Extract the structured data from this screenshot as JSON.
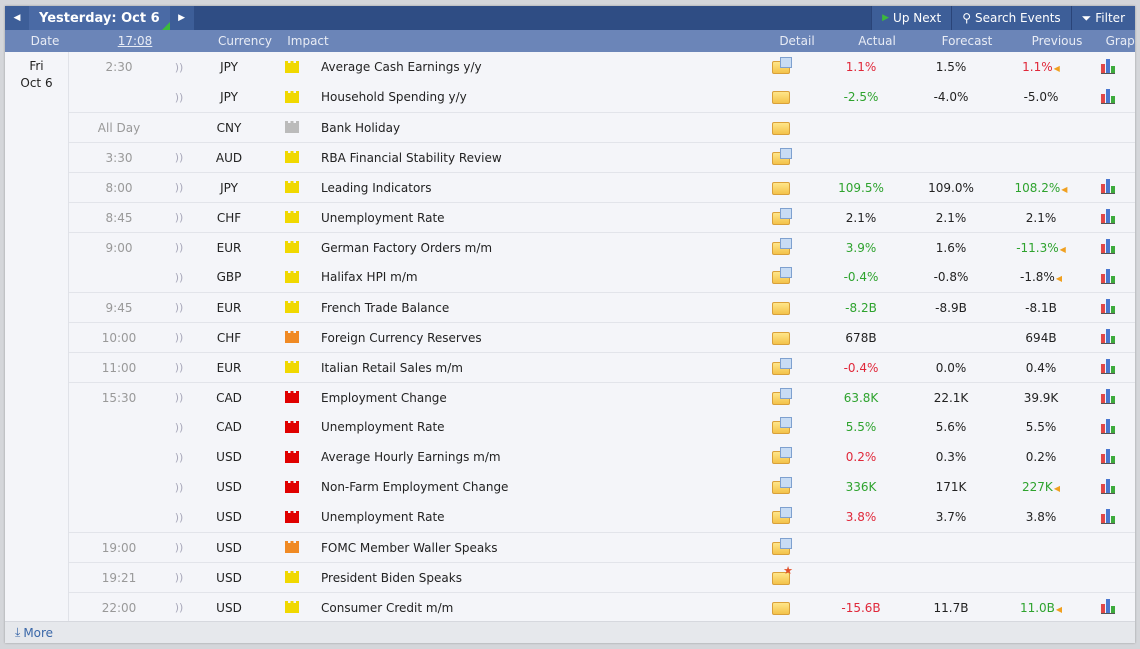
{
  "header": {
    "day_label": "Yesterday: Oct 6",
    "up_next": "Up Next",
    "search": "Search Events",
    "filter": "Filter"
  },
  "columns": {
    "date": "Date",
    "time": "17:08",
    "currency": "Currency",
    "impact": "Impact",
    "detail": "Detail",
    "actual": "Actual",
    "forecast": "Forecast",
    "previous": "Previous",
    "graph": "Graph"
  },
  "date": {
    "dow": "Fri",
    "day": "Oct 6"
  },
  "colors": {
    "green": "#2ea32e",
    "red": "#e0283a",
    "impact_low": "#f0d800",
    "impact_medium": "#f08a24",
    "impact_high": "#e00000",
    "impact_holiday": "#bbbbbb"
  },
  "events": [
    {
      "time": "2:30",
      "sound": true,
      "currency": "JPY",
      "impact": "low",
      "event": "Average Cash Earnings y/y",
      "detail": "doc",
      "actual": "1.1%",
      "actual_color": "red",
      "forecast": "1.5%",
      "previous": "1.1%",
      "previous_color": "red",
      "revised": true,
      "graph": true,
      "sep": false
    },
    {
      "time": "",
      "sound": true,
      "currency": "JPY",
      "impact": "low",
      "event": "Household Spending y/y",
      "detail": "plain",
      "actual": "-2.5%",
      "actual_color": "green",
      "forecast": "-4.0%",
      "previous": "-5.0%",
      "graph": true
    },
    {
      "time": "All Day",
      "sound": false,
      "currency": "CNY",
      "impact": "holiday",
      "event": "Bank Holiday",
      "detail": "plain",
      "sep": true
    },
    {
      "time": "3:30",
      "sound": true,
      "currency": "AUD",
      "impact": "low",
      "event": "RBA Financial Stability Review",
      "detail": "doc",
      "sep": true
    },
    {
      "time": "8:00",
      "sound": true,
      "currency": "JPY",
      "impact": "low",
      "event": "Leading Indicators",
      "detail": "plain",
      "actual": "109.5%",
      "actual_color": "green",
      "forecast": "109.0%",
      "previous": "108.2%",
      "previous_color": "green",
      "revised": true,
      "graph": true,
      "sep": true
    },
    {
      "time": "8:45",
      "sound": true,
      "currency": "CHF",
      "impact": "low",
      "event": "Unemployment Rate",
      "detail": "doc",
      "actual": "2.1%",
      "forecast": "2.1%",
      "previous": "2.1%",
      "graph": true,
      "sep": true
    },
    {
      "time": "9:00",
      "sound": true,
      "currency": "EUR",
      "impact": "low",
      "event": "German Factory Orders m/m",
      "detail": "doc",
      "actual": "3.9%",
      "actual_color": "green",
      "forecast": "1.6%",
      "previous": "-11.3%",
      "previous_color": "green",
      "revised": true,
      "graph": true,
      "sep": true
    },
    {
      "time": "",
      "sound": true,
      "currency": "GBP",
      "impact": "low",
      "event": "Halifax HPI m/m",
      "detail": "doc",
      "actual": "-0.4%",
      "actual_color": "green",
      "forecast": "-0.8%",
      "previous": "-1.8%",
      "revised": true,
      "graph": true
    },
    {
      "time": "9:45",
      "sound": true,
      "currency": "EUR",
      "impact": "low",
      "event": "French Trade Balance",
      "detail": "plain",
      "actual": "-8.2B",
      "actual_color": "green",
      "forecast": "-8.9B",
      "previous": "-8.1B",
      "graph": true,
      "sep": true
    },
    {
      "time": "10:00",
      "sound": true,
      "currency": "CHF",
      "impact": "medium",
      "event": "Foreign Currency Reserves",
      "detail": "plain",
      "actual": "678B",
      "previous": "694B",
      "graph": true,
      "sep": true
    },
    {
      "time": "11:00",
      "sound": true,
      "currency": "EUR",
      "impact": "low",
      "event": "Italian Retail Sales m/m",
      "detail": "doc",
      "actual": "-0.4%",
      "actual_color": "red",
      "forecast": "0.0%",
      "previous": "0.4%",
      "graph": true,
      "sep": true
    },
    {
      "time": "15:30",
      "sound": true,
      "currency": "CAD",
      "impact": "high",
      "event": "Employment Change",
      "detail": "doc",
      "actual": "63.8K",
      "actual_color": "green",
      "forecast": "22.1K",
      "previous": "39.9K",
      "graph": true,
      "sep": true
    },
    {
      "time": "",
      "sound": true,
      "currency": "CAD",
      "impact": "high",
      "event": "Unemployment Rate",
      "detail": "doc",
      "actual": "5.5%",
      "actual_color": "green",
      "forecast": "5.6%",
      "previous": "5.5%",
      "graph": true
    },
    {
      "time": "",
      "sound": true,
      "currency": "USD",
      "impact": "high",
      "event": "Average Hourly Earnings m/m",
      "detail": "doc",
      "actual": "0.2%",
      "actual_color": "red",
      "forecast": "0.3%",
      "previous": "0.2%",
      "graph": true
    },
    {
      "time": "",
      "sound": true,
      "currency": "USD",
      "impact": "high",
      "event": "Non-Farm Employment Change",
      "detail": "doc",
      "actual": "336K",
      "actual_color": "green",
      "forecast": "171K",
      "previous": "227K",
      "previous_color": "green",
      "revised": true,
      "graph": true
    },
    {
      "time": "",
      "sound": true,
      "currency": "USD",
      "impact": "high",
      "event": "Unemployment Rate",
      "detail": "doc",
      "actual": "3.8%",
      "actual_color": "red",
      "forecast": "3.7%",
      "previous": "3.8%",
      "graph": true
    },
    {
      "time": "19:00",
      "sound": true,
      "currency": "USD",
      "impact": "medium",
      "event": "FOMC Member Waller Speaks",
      "detail": "doc",
      "sep": true
    },
    {
      "time": "19:21",
      "sound": true,
      "currency": "USD",
      "impact": "low",
      "event": "President Biden Speaks",
      "detail": "star",
      "sep": true
    },
    {
      "time": "22:00",
      "sound": true,
      "currency": "USD",
      "impact": "low",
      "event": "Consumer Credit m/m",
      "detail": "plain",
      "actual": "-15.6B",
      "actual_color": "red",
      "forecast": "11.7B",
      "previous": "11.0B",
      "previous_color": "green",
      "revised": true,
      "graph": true,
      "sep": true
    }
  ],
  "footer": {
    "more": "More"
  }
}
